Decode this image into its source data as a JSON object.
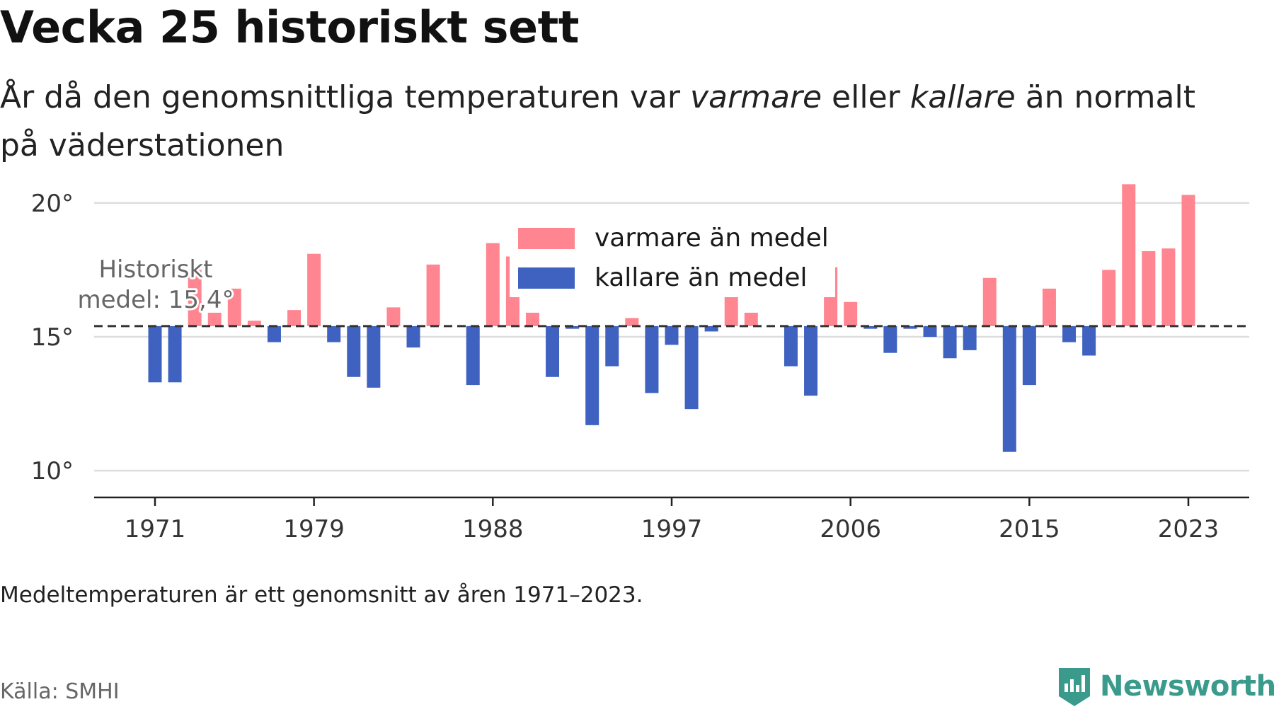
{
  "header": {
    "title": "Vecka 25 historiskt sett",
    "subtitle_part1": "År då den genomsnittliga temperaturen var ",
    "subtitle_warm": "varmare",
    "subtitle_part2": " eller ",
    "subtitle_cold": "kallare",
    "subtitle_part3": " än normalt på väderstationen"
  },
  "footer": {
    "note": "Medeltemperaturen är ett genomsnitt av åren 1971–2023.",
    "source": "Källa: SMHI",
    "brand": "Newsworthy"
  },
  "colors": {
    "warm": "#ff8591",
    "cold": "#3f62c1",
    "brand": "#3a9a8c"
  },
  "chart_data": {
    "type": "bar",
    "title": "",
    "xlabel": "",
    "ylabel": "",
    "x": [
      1971,
      1972,
      1973,
      1974,
      1975,
      1976,
      1977,
      1978,
      1979,
      1980,
      1981,
      1982,
      1983,
      1984,
      1985,
      1986,
      1987,
      1988,
      1989,
      1990,
      1991,
      1992,
      1993,
      1994,
      1995,
      1996,
      1997,
      1998,
      1999,
      2000,
      2001,
      2002,
      2003,
      2004,
      2005,
      2006,
      2007,
      2008,
      2009,
      2010,
      2011,
      2012,
      2013,
      2014,
      2015,
      2016,
      2017,
      2018,
      2019,
      2020,
      2021,
      2022,
      2023
    ],
    "values": [
      13.3,
      13.3,
      17.5,
      15.9,
      16.8,
      15.6,
      14.8,
      16.0,
      18.1,
      14.8,
      13.5,
      13.1,
      16.1,
      14.6,
      17.7,
      null,
      13.2,
      18.5,
      18.0,
      15.9,
      13.5,
      15.3,
      11.7,
      13.9,
      15.7,
      12.9,
      14.7,
      12.3,
      15.2,
      16.8,
      15.9,
      null,
      13.9,
      12.8,
      17.6,
      16.3,
      15.3,
      14.4,
      15.3,
      15.0,
      14.2,
      14.5,
      17.2,
      10.7,
      13.2,
      16.8,
      14.8,
      14.3,
      17.5,
      20.7,
      18.2,
      18.3,
      20.3
    ],
    "baseline": 15.4,
    "baseline_label_line1": "Historiskt",
    "baseline_label_line2": "medel: 15,4°",
    "ylim": [
      9,
      21
    ],
    "yticks": [
      10,
      15,
      20
    ],
    "ytick_labels": [
      "10°",
      "15°",
      "20°"
    ],
    "xticks": [
      1971,
      1979,
      1988,
      1997,
      2006,
      2015,
      2023
    ],
    "xtick_labels": [
      "1971",
      "1979",
      "1988",
      "1997",
      "2006",
      "2015",
      "2023"
    ],
    "grid": true,
    "legend": {
      "placement": "top-center",
      "warm_label": "varmare än medel",
      "cold_label": "kallare än medel"
    }
  }
}
